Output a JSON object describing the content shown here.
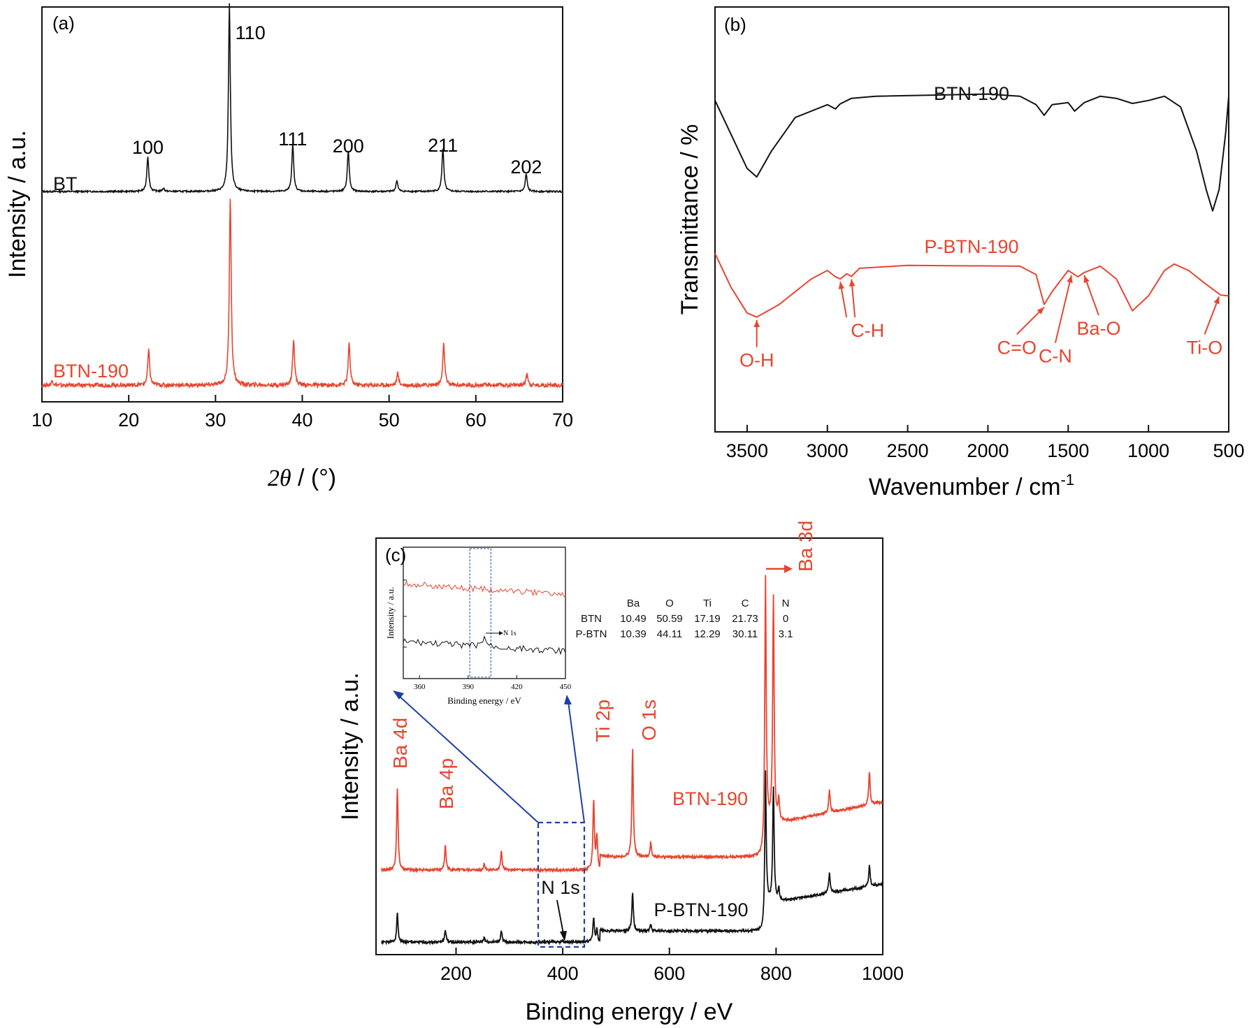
{
  "colors": {
    "black": "#111111",
    "red": "#e8442e",
    "blue": "#1f3fa8"
  },
  "chart_data": [
    {
      "id": "a",
      "type": "line",
      "panel_label": "(a)",
      "xlabel_symbol": "2θ",
      "xlabel_unit": " / (°)",
      "ylabel": "Intensity / a.u.",
      "xlim": [
        10,
        70
      ],
      "xticks": [
        "10",
        "20",
        "30",
        "40",
        "50",
        "60",
        "70"
      ],
      "yticks_shown": false,
      "series": [
        {
          "name": "BT",
          "color": "#111111",
          "baseline": 0.48,
          "peaks": [
            [
              22.2,
              0.09
            ],
            [
              24.0,
              0.008
            ],
            [
              31.6,
              0.48
            ],
            [
              38.9,
              0.12
            ],
            [
              45.3,
              0.105
            ],
            [
              50.9,
              0.028
            ],
            [
              56.2,
              0.11
            ],
            [
              65.8,
              0.045
            ]
          ]
        },
        {
          "name": "BTN-190",
          "color": "#e8442e",
          "baseline": 0.0,
          "peaks": [
            [
              11.2,
              0.012
            ],
            [
              22.3,
              0.09
            ],
            [
              31.7,
              0.48
            ],
            [
              39.0,
              0.12
            ],
            [
              45.4,
              0.105
            ],
            [
              51.0,
              0.03
            ],
            [
              56.3,
              0.105
            ],
            [
              65.9,
              0.03
            ]
          ]
        }
      ],
      "peak_labels": [
        {
          "x": 22.2,
          "text": "100"
        },
        {
          "x": 31.6,
          "text": "110"
        },
        {
          "x": 38.9,
          "text": "111"
        },
        {
          "x": 45.3,
          "text": "200"
        },
        {
          "x": 56.2,
          "text": "211"
        },
        {
          "x": 65.8,
          "text": "202"
        }
      ]
    },
    {
      "id": "b",
      "type": "line",
      "panel_label": "(b)",
      "xlabel": "Wavenumber / cm",
      "xlabel_sup": "-1",
      "ylabel": "Transmittance / %",
      "xlim": [
        3700,
        500
      ],
      "xticks": [
        "3500",
        "3000",
        "2500",
        "2000",
        "1500",
        "1000",
        "500"
      ],
      "yticks_shown": false,
      "series": [
        {
          "name": "BTN-190",
          "color": "#111111",
          "points": [
            [
              3700,
              0.78
            ],
            [
              3600,
              0.7
            ],
            [
              3500,
              0.62
            ],
            [
              3440,
              0.6
            ],
            [
              3350,
              0.66
            ],
            [
              3200,
              0.74
            ],
            [
              3000,
              0.77
            ],
            [
              2950,
              0.76
            ],
            [
              2920,
              0.772
            ],
            [
              2850,
              0.785
            ],
            [
              2700,
              0.79
            ],
            [
              2000,
              0.795
            ],
            [
              1800,
              0.79
            ],
            [
              1700,
              0.77
            ],
            [
              1650,
              0.745
            ],
            [
              1600,
              0.77
            ],
            [
              1500,
              0.775
            ],
            [
              1460,
              0.755
            ],
            [
              1400,
              0.775
            ],
            [
              1300,
              0.79
            ],
            [
              1200,
              0.785
            ],
            [
              1100,
              0.773
            ],
            [
              1000,
              0.78
            ],
            [
              900,
              0.79
            ],
            [
              800,
              0.765
            ],
            [
              700,
              0.66
            ],
            [
              640,
              0.57
            ],
            [
              600,
              0.52
            ],
            [
              560,
              0.57
            ],
            [
              520,
              0.7
            ],
            [
              500,
              0.79
            ]
          ]
        },
        {
          "name": "P-BTN-190",
          "color": "#e8442e",
          "points": [
            [
              3700,
              0.42
            ],
            [
              3600,
              0.34
            ],
            [
              3500,
              0.28
            ],
            [
              3440,
              0.27
            ],
            [
              3300,
              0.3
            ],
            [
              3100,
              0.36
            ],
            [
              3000,
              0.38
            ],
            [
              2950,
              0.365
            ],
            [
              2920,
              0.36
            ],
            [
              2880,
              0.372
            ],
            [
              2850,
              0.366
            ],
            [
              2800,
              0.385
            ],
            [
              2500,
              0.392
            ],
            [
              1800,
              0.39
            ],
            [
              1700,
              0.37
            ],
            [
              1650,
              0.3
            ],
            [
              1600,
              0.33
            ],
            [
              1500,
              0.38
            ],
            [
              1440,
              0.365
            ],
            [
              1400,
              0.375
            ],
            [
              1300,
              0.39
            ],
            [
              1200,
              0.36
            ],
            [
              1100,
              0.285
            ],
            [
              1000,
              0.32
            ],
            [
              900,
              0.38
            ],
            [
              840,
              0.395
            ],
            [
              750,
              0.38
            ],
            [
              650,
              0.35
            ],
            [
              550,
              0.322
            ],
            [
              500,
              0.32
            ]
          ]
        }
      ],
      "annotations": [
        {
          "text": "O-H",
          "target_x": 3440,
          "target_y": 0.27,
          "label_x": 3440,
          "label_y": 0.17
        },
        {
          "text": "C-H",
          "target_x": 2920,
          "target_y": 0.36,
          "label_x": 2750,
          "label_y": 0.24,
          "target2_x": 2850,
          "target2_y": 0.366
        },
        {
          "text": "C=O",
          "target_x": 1650,
          "target_y": 0.3,
          "label_x": 1820,
          "label_y": 0.2
        },
        {
          "text": "C-N",
          "target_x": 1480,
          "target_y": 0.375,
          "label_x": 1580,
          "label_y": 0.18
        },
        {
          "text": "Ba-O",
          "target_x": 1400,
          "target_y": 0.375,
          "label_x": 1310,
          "label_y": 0.245
        },
        {
          "text": "Ti-O",
          "target_x": 560,
          "target_y": 0.325,
          "label_x": 650,
          "label_y": 0.2
        }
      ]
    },
    {
      "id": "c",
      "type": "line",
      "panel_label": "(c)",
      "xlabel": "Binding energy / eV",
      "ylabel": "Intensity / a.u.",
      "xlim": [
        50,
        1000
      ],
      "xticks": [
        "200",
        "400",
        "600",
        "800",
        "1000"
      ],
      "yticks_shown": false,
      "series": [
        {
          "name": "BTN-190",
          "color": "#e8442e",
          "baseline": 0.195,
          "rise": 0.07,
          "peaks": [
            [
              90,
              0.2
            ],
            [
              180,
              0.06
            ],
            [
              253,
              0.016
            ],
            [
              285,
              0.045
            ],
            [
              458,
              0.17
            ],
            [
              464,
              0.08
            ],
            [
              531,
              0.26
            ],
            [
              565,
              0.035
            ],
            [
              780,
              0.62
            ],
            [
              795,
              0.55
            ],
            [
              805,
              0.05
            ],
            [
              900,
              0.055
            ],
            [
              975,
              0.08
            ]
          ]
        },
        {
          "name": "P-BTN-190",
          "color": "#111111",
          "baseline": 0.02,
          "rise": 0.06,
          "peaks": [
            [
              90,
              0.07
            ],
            [
              180,
              0.03
            ],
            [
              253,
              0.012
            ],
            [
              285,
              0.028
            ],
            [
              400,
              0.005
            ],
            [
              458,
              0.06
            ],
            [
              464,
              0.03
            ],
            [
              531,
              0.095
            ],
            [
              565,
              0.015
            ],
            [
              780,
              0.33
            ],
            [
              795,
              0.28
            ],
            [
              805,
              0.03
            ],
            [
              900,
              0.05
            ],
            [
              975,
              0.05
            ]
          ]
        }
      ],
      "peak_labels": [
        {
          "text": "Ba 4d",
          "x": 90
        },
        {
          "text": "Ba 4p",
          "x": 178
        },
        {
          "text": "Ti 2p",
          "x": 458
        },
        {
          "text": "O 1s",
          "x": 531
        },
        {
          "text": "Ba 3d",
          "x": 795
        }
      ],
      "n1s_label": "N 1s",
      "table": {
        "columns": [
          "",
          "Ba",
          "O",
          "Ti",
          "C",
          "N"
        ],
        "rows": [
          [
            "BTN",
            "10.49",
            "50.59",
            "17.19",
            "21.73",
            "0"
          ],
          [
            "P-BTN",
            "10.39",
            "44.11",
            "12.29",
            "30.11",
            "3.1"
          ]
        ]
      },
      "inset": {
        "xlabel": "Binding energy / eV",
        "ylabel": "Intensity / a.u.",
        "xlim": [
          350,
          450
        ],
        "xticks": [
          "360",
          "390",
          "420",
          "450"
        ],
        "annotation": "N 1s",
        "highlight": [
          391,
          404
        ],
        "peak": [
          400,
          0.09
        ]
      }
    }
  ]
}
